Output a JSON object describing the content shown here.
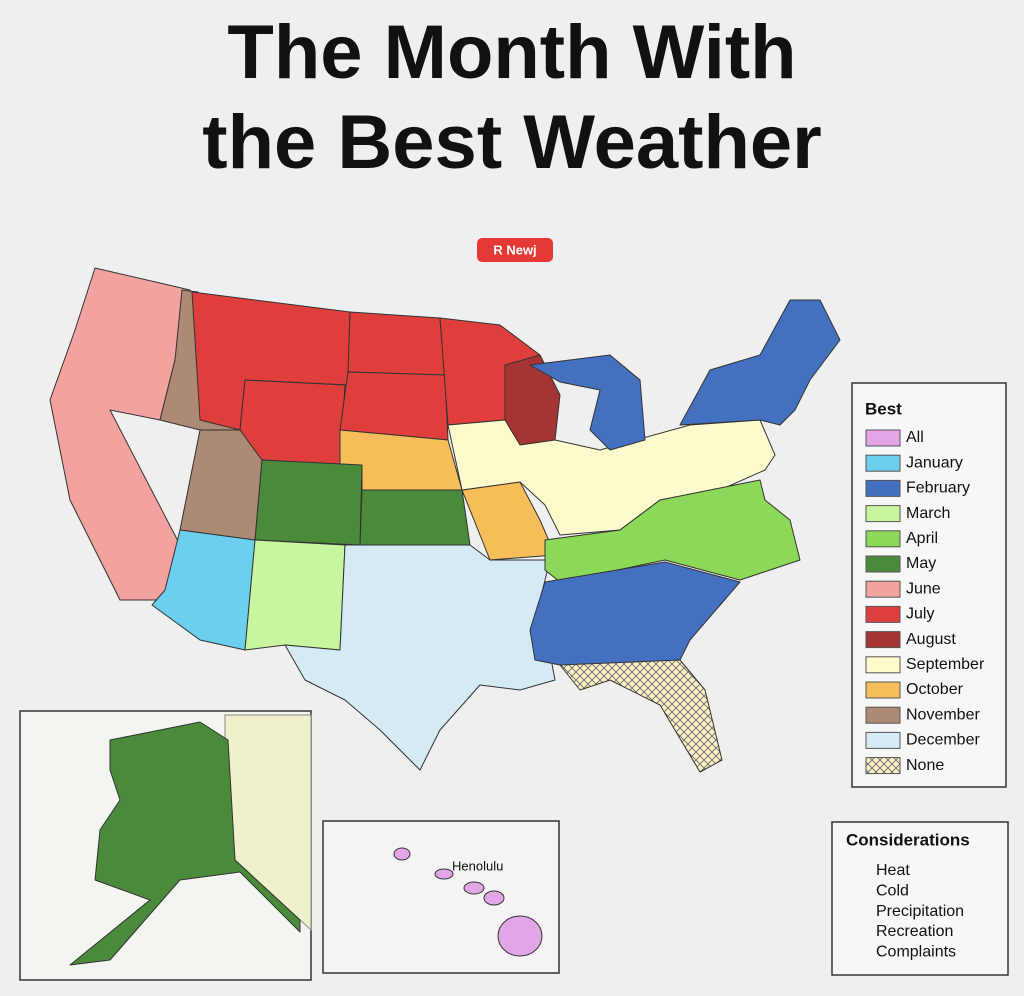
{
  "title_lines": [
    "The Month With",
    "the Best Weather"
  ],
  "badge": "R Newj",
  "legend": {
    "title": "Best",
    "items": [
      {
        "label": "All",
        "color": "#e2a6e6"
      },
      {
        "label": "January",
        "color": "#6ccfee"
      },
      {
        "label": "February",
        "color": "#4470c0"
      },
      {
        "label": "March",
        "color": "#c8f5a0"
      },
      {
        "label": "April",
        "color": "#8cd858"
      },
      {
        "label": "May",
        "color": "#4a8a3a"
      },
      {
        "label": "June",
        "color": "#f2a3a0"
      },
      {
        "label": "July",
        "color": "#de3e3c"
      },
      {
        "label": "August",
        "color": "#a63432"
      },
      {
        "label": "September",
        "color": "#fdfbcb"
      },
      {
        "label": "October",
        "color": "#f6bd58"
      },
      {
        "label": "November",
        "color": "#ad8a76"
      },
      {
        "label": "December",
        "color": "#d4eaf4"
      },
      {
        "label": "None",
        "color": "#f9efc4",
        "hatch": true
      }
    ]
  },
  "hawaii_label": "Henolulu",
  "considerations": {
    "title": "Considerations",
    "items": [
      "Heat",
      "Cold",
      "Precipitation",
      "Recreation",
      "Complaints"
    ]
  }
}
